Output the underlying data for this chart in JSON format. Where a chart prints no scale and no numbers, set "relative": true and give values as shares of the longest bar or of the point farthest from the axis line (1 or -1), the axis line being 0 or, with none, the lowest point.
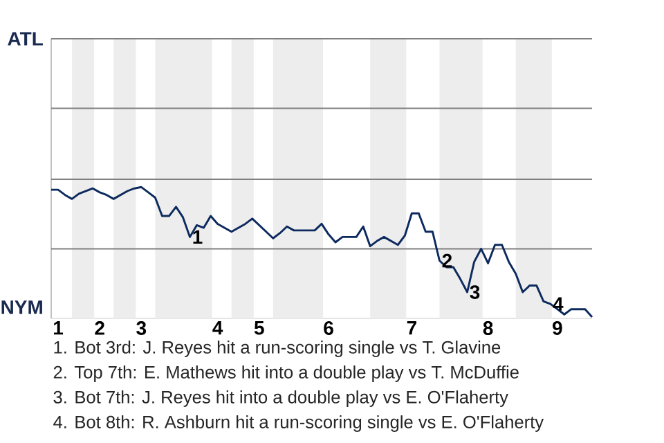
{
  "chart_data": {
    "type": "line",
    "color": "#0d2a5e",
    "relative": true,
    "ref_lines": [
      {
        "axis": "y",
        "value": 0.53,
        "color": "#808080"
      },
      {
        "axis": "y",
        "value": 1.06,
        "color": "#808080"
      },
      {
        "axis": "y",
        "value": 1.6,
        "color": "#808080"
      },
      {
        "axis": "y",
        "value": 2.13,
        "color": "#808080"
      }
    ],
    "categories": [
      null,
      "1",
      null,
      null,
      null,
      null,
      null,
      "2",
      null,
      null,
      null,
      null,
      null,
      "3",
      null,
      null,
      null,
      null,
      null,
      null,
      null,
      null,
      null,
      null,
      "4",
      null,
      null,
      null,
      null,
      null,
      "5",
      null,
      null,
      null,
      null,
      null,
      null,
      null,
      null,
      null,
      "6",
      null,
      null,
      null,
      null,
      null,
      null,
      null,
      null,
      null,
      null,
      null,
      "7",
      null,
      null,
      null,
      null,
      null,
      null,
      null,
      null,
      null,
      null,
      "8",
      null,
      null,
      null,
      null,
      null,
      null,
      null,
      null,
      null,
      "9",
      null,
      null,
      null,
      null,
      null
    ],
    "values": [
      0.98,
      0.98,
      0.94,
      0.91,
      0.95,
      0.97,
      0.99,
      0.96,
      0.94,
      0.91,
      0.94,
      0.97,
      0.99,
      1,
      0.96,
      0.92,
      0.78,
      0.78,
      0.85,
      0.77,
      0.62,
      0.71,
      0.69,
      0.78,
      0.72,
      0.69,
      0.66,
      0.69,
      0.72,
      0.76,
      0.71,
      0.66,
      0.61,
      0.65,
      0.7,
      0.67,
      0.67,
      0.67,
      0.67,
      0.72,
      0.64,
      0.58,
      0.62,
      0.62,
      0.62,
      0.7,
      0.55,
      0.59,
      0.62,
      0.59,
      0.56,
      0.63,
      0.8,
      0.8,
      0.66,
      0.66,
      0.44,
      0.39,
      0.39,
      0.3,
      0.2,
      0.43,
      0.53,
      0.42,
      0.56,
      0.56,
      0.43,
      0.34,
      0.2,
      0.25,
      0.25,
      0.13,
      0.11,
      0.07,
      0.03,
      0.07,
      0.07,
      0.07,
      0.01
    ],
    "annotations": [
      "ATL",
      "NYM",
      {
        "text": "1",
        "y": 0.62
      },
      {
        "text": "2",
        "y": 0.44
      },
      {
        "text": "3",
        "y": 0.2
      },
      {
        "text": "4",
        "y": 0.11
      },
      "1. Bot 3rd: J. Reyes hit a run-scoring single vs T. Glavine",
      "2. Top 7th: E. Mathews hit into a double play vs T. McDuffie",
      "3. Bot 7th: J. Reyes hit into a double play vs E. O'Flaherty",
      "4. Bot 8th: R. Ashburn hit a run-scoring single vs E. O'Flaherty"
    ]
  }
}
